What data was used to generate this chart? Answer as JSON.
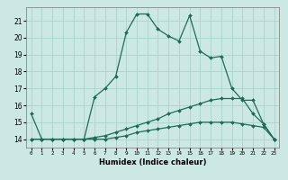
{
  "xlabel": "Humidex (Indice chaleur)",
  "ylabel": "",
  "xlim": [
    -0.5,
    23.5
  ],
  "ylim": [
    13.5,
    21.8
  ],
  "yticks": [
    14,
    15,
    16,
    17,
    18,
    19,
    20,
    21
  ],
  "xticks": [
    0,
    1,
    2,
    3,
    4,
    5,
    6,
    7,
    8,
    9,
    10,
    11,
    12,
    13,
    14,
    15,
    16,
    17,
    18,
    19,
    20,
    21,
    22,
    23
  ],
  "bg_color": "#cce8e4",
  "grid_color": "#aad4ce",
  "line_color": "#1e6b5a",
  "series1_x": [
    0,
    1,
    2,
    3,
    4,
    5,
    6,
    7,
    8,
    9,
    10,
    11,
    12,
    13,
    14,
    15,
    16,
    17,
    18,
    19,
    20,
    21,
    22,
    23
  ],
  "series1_y": [
    15.5,
    14.0,
    14.0,
    14.0,
    14.0,
    14.0,
    16.5,
    17.0,
    17.7,
    20.3,
    21.4,
    21.4,
    20.5,
    20.1,
    19.8,
    21.3,
    19.2,
    18.8,
    18.9,
    17.0,
    16.3,
    16.3,
    14.9,
    14.0
  ],
  "series2_x": [
    0,
    1,
    2,
    3,
    4,
    5,
    6,
    7,
    8,
    9,
    10,
    11,
    12,
    13,
    14,
    15,
    16,
    17,
    18,
    19,
    20,
    21,
    22,
    23
  ],
  "series2_y": [
    14.0,
    14.0,
    14.0,
    14.0,
    14.0,
    14.0,
    14.1,
    14.2,
    14.4,
    14.6,
    14.8,
    15.0,
    15.2,
    15.5,
    15.7,
    15.9,
    16.1,
    16.3,
    16.4,
    16.4,
    16.4,
    15.5,
    14.9,
    14.0
  ],
  "series3_x": [
    0,
    1,
    2,
    3,
    4,
    5,
    6,
    7,
    8,
    9,
    10,
    11,
    12,
    13,
    14,
    15,
    16,
    17,
    18,
    19,
    20,
    21,
    22,
    23
  ],
  "series3_y": [
    14.0,
    14.0,
    14.0,
    14.0,
    14.0,
    14.0,
    14.0,
    14.0,
    14.1,
    14.2,
    14.4,
    14.5,
    14.6,
    14.7,
    14.8,
    14.9,
    15.0,
    15.0,
    15.0,
    15.0,
    14.9,
    14.8,
    14.7,
    14.0
  ]
}
